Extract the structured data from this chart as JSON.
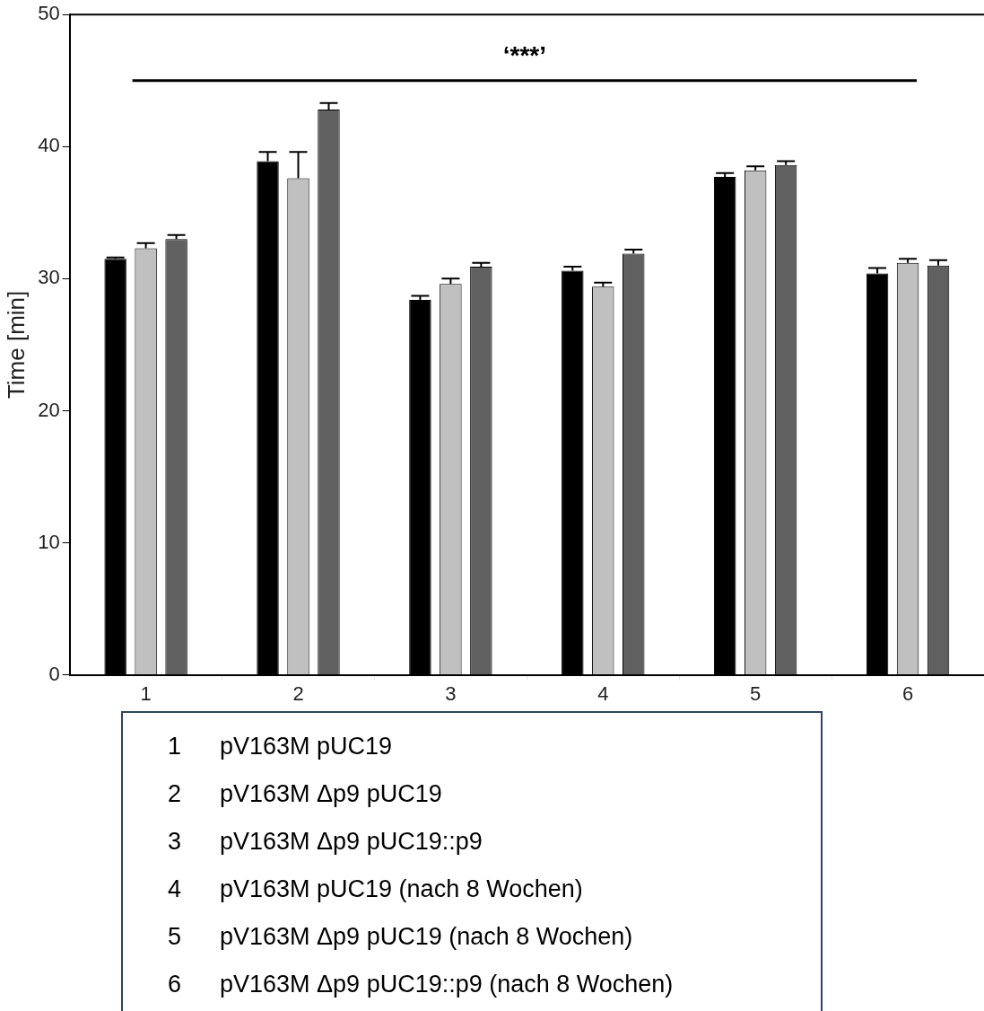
{
  "chart_data": {
    "type": "bar",
    "ylabel": "Time [min]",
    "categories": [
      "1",
      "2",
      "3",
      "4",
      "5",
      "6"
    ],
    "series": [
      {
        "color": "#000000",
        "values": [
          31.5,
          38.9,
          28.4,
          30.6,
          37.7,
          30.4
        ],
        "errors": [
          [
            31.5,
            31.6
          ],
          [
            38.9,
            39.6
          ],
          [
            28.4,
            28.7
          ],
          [
            30.6,
            30.9
          ],
          [
            37.7,
            38.0
          ],
          [
            30.4,
            30.8
          ]
        ]
      },
      {
        "color": "#c0c0c0",
        "values": [
          32.3,
          37.6,
          29.6,
          29.4,
          38.2,
          31.2
        ],
        "errors": [
          [
            32.3,
            32.7
          ],
          [
            37.6,
            39.6
          ],
          [
            29.6,
            30.0
          ],
          [
            29.4,
            29.7
          ],
          [
            38.2,
            38.5
          ],
          [
            31.2,
            31.5
          ]
        ]
      },
      {
        "color": "#606060",
        "values": [
          33.0,
          42.8,
          30.9,
          31.9,
          38.6,
          31.0
        ],
        "errors": [
          [
            33.0,
            33.3
          ],
          [
            42.8,
            43.3
          ],
          [
            30.9,
            31.2
          ],
          [
            31.9,
            32.2
          ],
          [
            38.6,
            38.9
          ],
          [
            31.0,
            31.4
          ]
        ]
      }
    ],
    "ylim": [
      0,
      50
    ],
    "yticks": [
      0,
      10,
      20,
      30,
      40,
      50
    ],
    "grid": false,
    "legend": false,
    "ref_lines": [
      {
        "axis": "y",
        "value": 45,
        "label": "‘***’",
        "color": "#000000"
      }
    ],
    "annotations": [
      "pV163M pUC19",
      "pV163M Δp9 pUC19",
      "pV163M Δp9 pUC19::p9",
      "pV163M pUC19 (nach 8 Wochen)",
      "pV163M Δp9 pUC19 (nach 8 Wochen)",
      "pV163M Δp9 pUC19::p9 (nach 8 Wochen)"
    ]
  }
}
